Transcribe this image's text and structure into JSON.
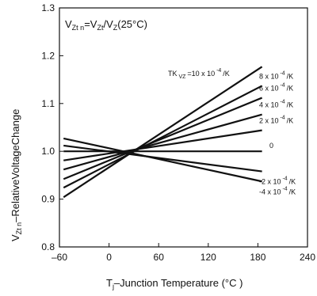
{
  "chart_data": {
    "type": "line",
    "title": "",
    "formula": {
      "v1": "V",
      "s1": "Zt n",
      "eq": "=V",
      "s2": "Zt",
      "mid": "/V",
      "s3": "Z",
      "tail": "(25°C)"
    },
    "xlabel": {
      "prefix": "T",
      "sub": "j",
      "rest": "–Junction Temperature (°C )"
    },
    "ylabel": {
      "prefix": "V",
      "sub": "Zt n",
      "rest": "–RelativeVoltageChange"
    },
    "xlim": [
      -60,
      240
    ],
    "ylim": [
      0.8,
      1.3
    ],
    "xticks": [
      -60,
      0,
      60,
      120,
      180,
      240
    ],
    "xtick_labels": [
      "–60",
      "0",
      "60",
      "120",
      "180",
      "240"
    ],
    "yticks": [
      0.8,
      0.9,
      1.0,
      1.1,
      1.2,
      1.3
    ],
    "ytick_labels": [
      "0.8",
      "0.9",
      "1.0",
      "1.1",
      "1.2",
      "1.3"
    ],
    "grid": false,
    "series": [
      {
        "x": [
          -55,
          185
        ],
        "y": [
          0.904,
          1.177
        ],
        "label": {
          "pre": "TK",
          "sub": "VZ",
          "mid": "=10 x 10",
          "sup": "-4",
          "post": "/K"
        }
      },
      {
        "x": [
          -55,
          185
        ],
        "y": [
          0.924,
          1.137
        ],
        "label": {
          "pre": "8 x 10",
          "sup": "-4",
          "post": "/K"
        }
      },
      {
        "x": [
          -55,
          185
        ],
        "y": [
          0.942,
          1.112
        ],
        "label": {
          "pre": "6 x 10",
          "sup": "-4",
          "post": "/K"
        }
      },
      {
        "x": [
          -55,
          185
        ],
        "y": [
          0.962,
          1.077
        ],
        "label": {
          "pre": "4 x 10",
          "sup": "-4",
          "post": "/K"
        }
      },
      {
        "x": [
          -55,
          185
        ],
        "y": [
          0.981,
          1.044
        ],
        "label": {
          "pre": "2 x 10",
          "sup": "-4",
          "post": "/K"
        }
      },
      {
        "x": [
          -55,
          185
        ],
        "y": [
          1.0,
          1.0
        ],
        "label": {
          "pre": "0",
          "sup": "",
          "post": ""
        }
      },
      {
        "x": [
          -55,
          185
        ],
        "y": [
          1.012,
          0.958
        ],
        "label": {
          "pre": "-2 x 10",
          "sup": "-4",
          "post": "/K"
        }
      },
      {
        "x": [
          -55,
          185
        ],
        "y": [
          1.027,
          0.937
        ],
        "label": {
          "pre": "-4 x 10",
          "sup": "-4",
          "post": "/K"
        }
      }
    ]
  }
}
